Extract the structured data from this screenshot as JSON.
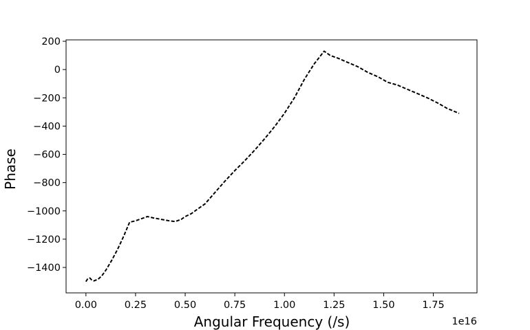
{
  "chart_data": {
    "type": "line",
    "xlabel": "Angular Frequency (/s)",
    "ylabel": "Phase",
    "x_offset_label": "1e16",
    "xlim": [
      -0.1,
      1.97
    ],
    "ylim": [
      -1580,
      210
    ],
    "grid": false,
    "legend": "none",
    "x_ticks": [
      0.0,
      0.25,
      0.5,
      0.75,
      1.0,
      1.25,
      1.5,
      1.75
    ],
    "x_tick_labels": [
      "0.00",
      "0.25",
      "0.50",
      "0.75",
      "1.00",
      "1.25",
      "1.50",
      "1.75"
    ],
    "y_ticks": [
      200,
      0,
      -200,
      -400,
      -600,
      -800,
      -1000,
      -1200,
      -1400
    ],
    "y_tick_labels": [
      "200",
      "0",
      "−200",
      "−400",
      "−600",
      "−800",
      "−1000",
      "−1200",
      "−1400"
    ],
    "series": [
      {
        "color": "#000000",
        "linestyle": "dashed",
        "x": [
          0.0,
          0.01,
          0.02,
          0.03,
          0.04,
          0.06,
          0.08,
          0.1,
          0.13,
          0.16,
          0.19,
          0.22,
          0.25,
          0.28,
          0.31,
          0.34,
          0.38,
          0.42,
          0.45,
          0.48,
          0.5,
          0.53,
          0.56,
          0.6,
          0.65,
          0.7,
          0.75,
          0.8,
          0.85,
          0.9,
          0.95,
          1.0,
          1.05,
          1.1,
          1.15,
          1.2,
          1.23,
          1.27,
          1.32,
          1.37,
          1.42,
          1.47,
          1.52,
          1.57,
          1.62,
          1.67,
          1.72,
          1.77,
          1.82,
          1.88
        ],
        "y": [
          -1500,
          -1478,
          -1475,
          -1490,
          -1495,
          -1485,
          -1460,
          -1420,
          -1350,
          -1270,
          -1180,
          -1080,
          -1070,
          -1055,
          -1040,
          -1050,
          -1060,
          -1070,
          -1075,
          -1060,
          -1040,
          -1020,
          -990,
          -950,
          -870,
          -790,
          -715,
          -645,
          -570,
          -490,
          -405,
          -310,
          -200,
          -70,
          40,
          130,
          100,
          80,
          50,
          20,
          -20,
          -50,
          -90,
          -110,
          -140,
          -170,
          -200,
          -235,
          -275,
          -310
        ]
      }
    ]
  }
}
